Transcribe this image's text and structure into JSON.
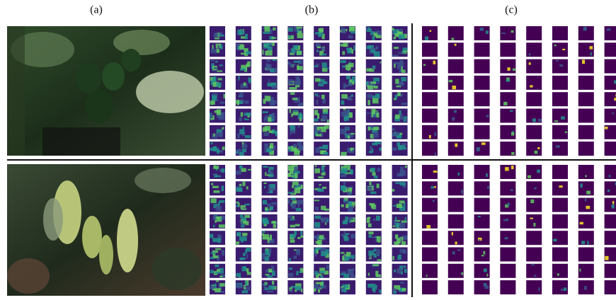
{
  "labels": {
    "a": "(a)",
    "b": "(b)",
    "c": "(c)"
  }
}
